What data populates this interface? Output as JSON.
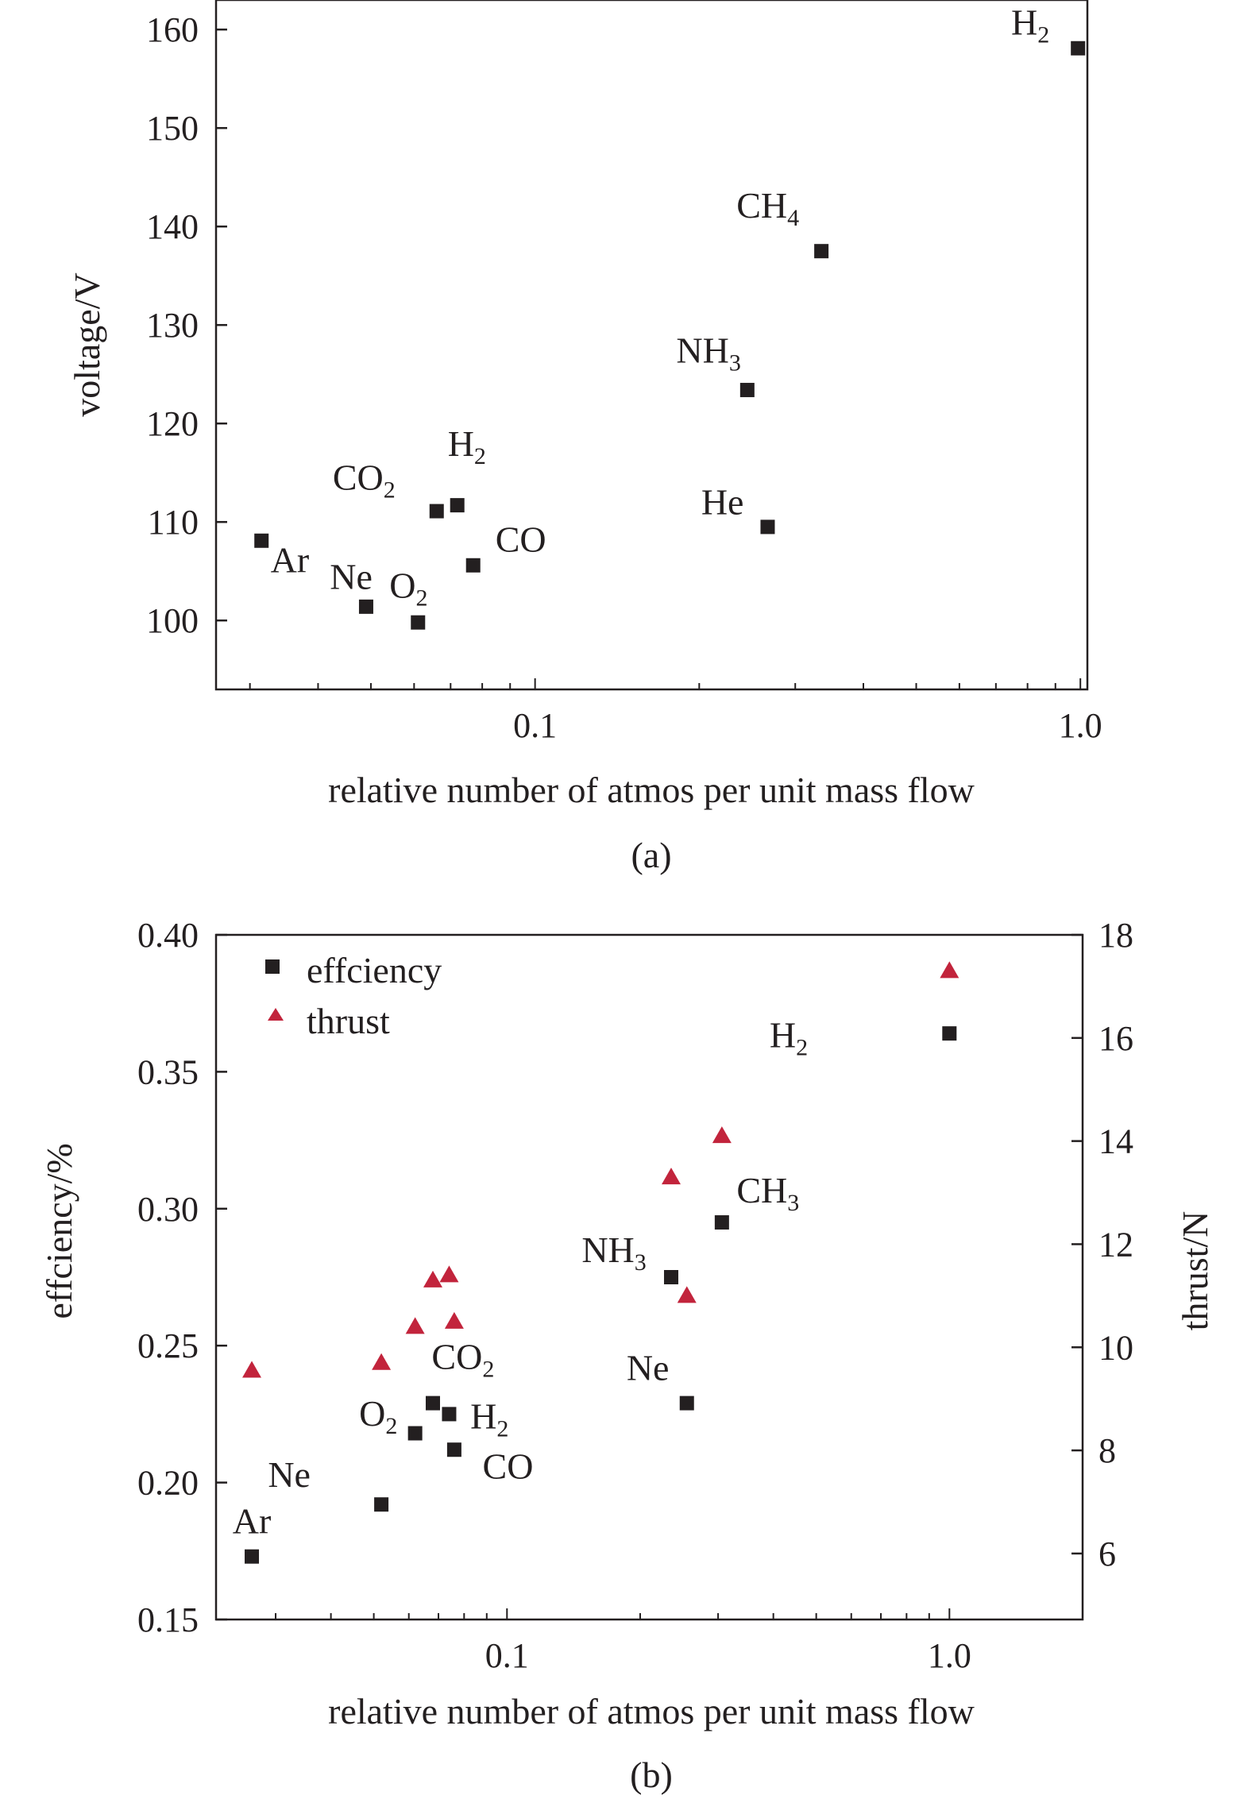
{
  "chart_data": [
    {
      "panel": "(a)",
      "type": "scatter",
      "xscale": "log",
      "xlabel": "relative number of atmos per unit mass flow",
      "ylabel": "voltage/V",
      "xlim": [
        0.026,
        1.03
      ],
      "ylim": [
        93,
        163
      ],
      "xticks": [
        0.1,
        1.0
      ],
      "xtick_labels": [
        "0.1",
        "1.0"
      ],
      "yticks": [
        100,
        110,
        120,
        130,
        140,
        150,
        160
      ],
      "ytick_labels": [
        "100",
        "110",
        "120",
        "130",
        "140",
        "150",
        "160"
      ],
      "points": [
        {
          "x": 0.0315,
          "y": 108.1,
          "label": "Ar",
          "sub": "",
          "anchor": "end",
          "dx": 1.5,
          "dy": -3.2
        },
        {
          "x": 0.049,
          "y": 101.4,
          "label": "Ne",
          "sub": "",
          "anchor": "end",
          "dx": 0.2,
          "dy": 1.8
        },
        {
          "x": 0.061,
          "y": 99.8,
          "label": "O",
          "sub": "2",
          "anchor": "start",
          "dx": -0.9,
          "dy": 2.5
        },
        {
          "x": 0.066,
          "y": 111.1,
          "label": "CO",
          "sub": "2",
          "anchor": "end",
          "dx": -1.3,
          "dy": 2.2
        },
        {
          "x": 0.072,
          "y": 111.7,
          "label": "H",
          "sub": "2",
          "anchor": "start",
          "dx": -0.3,
          "dy": 5.0
        },
        {
          "x": 0.077,
          "y": 105.6,
          "label": "CO",
          "sub": "",
          "anchor": "start",
          "dx": 0.7,
          "dy": 1.4
        },
        {
          "x": 0.245,
          "y": 123.4,
          "label": "NH",
          "sub": "3",
          "anchor": "end",
          "dx": -0.2,
          "dy": 2.8
        },
        {
          "x": 0.267,
          "y": 109.5,
          "label": "He",
          "sub": "",
          "anchor": "end",
          "dx": -0.75,
          "dy": 1.3
        },
        {
          "x": 0.335,
          "y": 137.5,
          "label": "CH",
          "sub": "4",
          "anchor": "end",
          "dx": -0.7,
          "dy": 3.4
        },
        {
          "x": 0.99,
          "y": 158.1,
          "label": "H",
          "sub": "2",
          "anchor": "end",
          "dx": -0.9,
          "dy": 1.4
        }
      ],
      "caption": "(a)"
    },
    {
      "panel": "(b)",
      "type": "scatter",
      "xscale": "log",
      "xlabel": "relative number of atmos per unit mass flow",
      "ylabel": "effciency/%",
      "y2label": "thrust/N",
      "xlim": [
        0.022,
        2.0
      ],
      "ylim": [
        0.15,
        0.4
      ],
      "y2lim": [
        4.72,
        18.0
      ],
      "xticks": [
        0.1,
        1.0
      ],
      "xtick_labels": [
        "0.1",
        "1.0"
      ],
      "yticks": [
        0.15,
        0.2,
        0.25,
        0.3,
        0.35,
        0.4
      ],
      "ytick_labels": [
        "0.15",
        "0.20",
        "0.25",
        "0.30",
        "0.35",
        "0.40"
      ],
      "y2ticks": [
        6,
        8,
        10,
        12,
        14,
        16,
        18
      ],
      "y2tick_labels": [
        "6",
        "8",
        "10",
        "12",
        "14",
        "16",
        "18"
      ],
      "legend": [
        "effciency",
        "thrust"
      ],
      "legend_position": "top-left",
      "series_colors": {
        "efficiency": "#231f20",
        "thrust": "#c2243c"
      },
      "efficiency": [
        {
          "x": 0.0265,
          "y": 0.173,
          "label": "Ar",
          "sub": "",
          "anchor": "middle",
          "dx": 0,
          "dy": 0.0085
        },
        {
          "x": 0.052,
          "y": 0.192,
          "label": "Ne",
          "sub": "",
          "anchor": "end",
          "dx": -0.1,
          "dy": 0.0065
        },
        {
          "x": 0.062,
          "y": 0.218,
          "label": "O",
          "sub": "2",
          "anchor": "end",
          "dx": -0.025,
          "dy": 0.0028
        },
        {
          "x": 0.068,
          "y": 0.229,
          "label": "CO",
          "sub": "2",
          "anchor": "middle",
          "dx": 0.0425,
          "dy": 0.0125
        },
        {
          "x": 0.074,
          "y": 0.225,
          "label": "H",
          "sub": "2",
          "anchor": "start",
          "dx": 0.03,
          "dy": -0.0052
        },
        {
          "x": 0.076,
          "y": 0.212,
          "label": "CO",
          "sub": "",
          "anchor": "start",
          "dx": 0.04,
          "dy": -0.0105
        },
        {
          "x": 0.235,
          "y": 0.275,
          "label": "NH",
          "sub": "3",
          "anchor": "end",
          "dx": -0.035,
          "dy": 0.0055
        },
        {
          "x": 0.255,
          "y": 0.229,
          "label": "Ne",
          "sub": "",
          "anchor": "end",
          "dx": -0.025,
          "dy": 0.0085
        },
        {
          "x": 0.306,
          "y": 0.295,
          "label": "CH",
          "sub": "3",
          "anchor": "middle",
          "dx": 0.065,
          "dy": 0.0072
        },
        {
          "x": 1.0,
          "y": 0.364,
          "label": "H",
          "sub": "2",
          "anchor": "end",
          "dx": -0.2,
          "dy": -0.005
        }
      ],
      "thrust": [
        {
          "x": 0.0265,
          "y": 9.55
        },
        {
          "x": 0.052,
          "y": 9.7
        },
        {
          "x": 0.062,
          "y": 10.4
        },
        {
          "x": 0.068,
          "y": 11.3
        },
        {
          "x": 0.074,
          "y": 11.4
        },
        {
          "x": 0.076,
          "y": 10.5
        },
        {
          "x": 0.235,
          "y": 13.3
        },
        {
          "x": 0.255,
          "y": 11.0
        },
        {
          "x": 0.306,
          "y": 14.1
        },
        {
          "x": 1.0,
          "y": 17.3
        }
      ],
      "caption": "(b)"
    }
  ]
}
